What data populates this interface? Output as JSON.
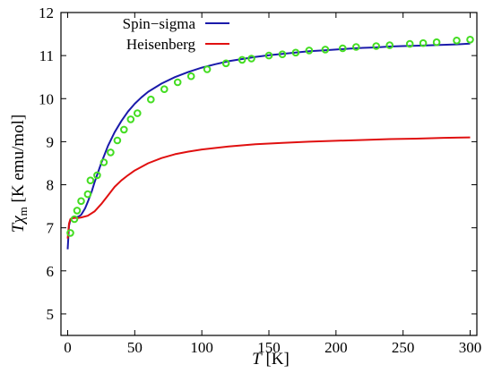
{
  "chart_data": {
    "type": "line",
    "title": "",
    "xlabel": {
      "italic": "T",
      "rest": " [K]"
    },
    "ylabel": {
      "italic": "Tχ",
      "sub": "m",
      "rest": " [K emu/mol]"
    },
    "xlim": [
      -5,
      305
    ],
    "ylim": [
      4.5,
      12
    ],
    "xticks": [
      0,
      50,
      100,
      150,
      200,
      250,
      300
    ],
    "yticks": [
      5,
      6,
      7,
      8,
      9,
      10,
      11,
      12
    ],
    "grid": false,
    "legend_position": "top-left",
    "series": [
      {
        "name": "Spin−sigma",
        "style": "line",
        "color": "#1a1aaa",
        "x": [
          0,
          1,
          2,
          3,
          5,
          8,
          10,
          13,
          15,
          18,
          20,
          25,
          30,
          35,
          40,
          45,
          50,
          55,
          60,
          70,
          80,
          90,
          100,
          110,
          120,
          130,
          140,
          150,
          160,
          170,
          180,
          190,
          200,
          210,
          220,
          230,
          240,
          250,
          260,
          270,
          280,
          290,
          300
        ],
        "y": [
          6.5,
          7.05,
          7.18,
          7.22,
          7.24,
          7.26,
          7.3,
          7.45,
          7.6,
          7.85,
          8.05,
          8.5,
          8.9,
          9.22,
          9.48,
          9.7,
          9.88,
          10.03,
          10.16,
          10.35,
          10.5,
          10.62,
          10.72,
          10.8,
          10.87,
          10.92,
          10.97,
          11.01,
          11.04,
          11.07,
          11.1,
          11.12,
          11.14,
          11.16,
          11.18,
          11.19,
          11.21,
          11.22,
          11.23,
          11.24,
          11.25,
          11.26,
          11.28
        ]
      },
      {
        "name": "Heisenberg",
        "style": "line",
        "color": "#e01010",
        "x": [
          0,
          1,
          2,
          3,
          5,
          8,
          10,
          15,
          20,
          25,
          30,
          35,
          40,
          45,
          50,
          60,
          70,
          80,
          90,
          100,
          120,
          140,
          160,
          180,
          200,
          220,
          240,
          260,
          280,
          300
        ],
        "y": [
          6.75,
          7.1,
          7.2,
          7.22,
          7.23,
          7.23,
          7.24,
          7.28,
          7.38,
          7.55,
          7.75,
          7.95,
          8.1,
          8.22,
          8.33,
          8.5,
          8.62,
          8.71,
          8.77,
          8.82,
          8.89,
          8.94,
          8.97,
          9.0,
          9.02,
          9.04,
          9.06,
          9.07,
          9.09,
          9.1
        ]
      },
      {
        "name": "",
        "style": "markers",
        "color": "#44dd22",
        "x": [
          2,
          5,
          7,
          10,
          15,
          17,
          22,
          27,
          32,
          37,
          42,
          47,
          52,
          62,
          72,
          82,
          92,
          104,
          118,
          130,
          137,
          150,
          160,
          170,
          180,
          192,
          205,
          215,
          230,
          240,
          255,
          265,
          275,
          290,
          300
        ],
        "y": [
          6.88,
          7.2,
          7.4,
          7.62,
          7.78,
          8.1,
          8.22,
          8.52,
          8.75,
          9.03,
          9.28,
          9.52,
          9.66,
          9.98,
          10.22,
          10.38,
          10.52,
          10.68,
          10.82,
          10.9,
          10.93,
          11.0,
          11.03,
          11.07,
          11.12,
          11.14,
          11.17,
          11.2,
          11.22,
          11.24,
          11.27,
          11.29,
          11.31,
          11.35,
          11.37
        ]
      }
    ]
  }
}
